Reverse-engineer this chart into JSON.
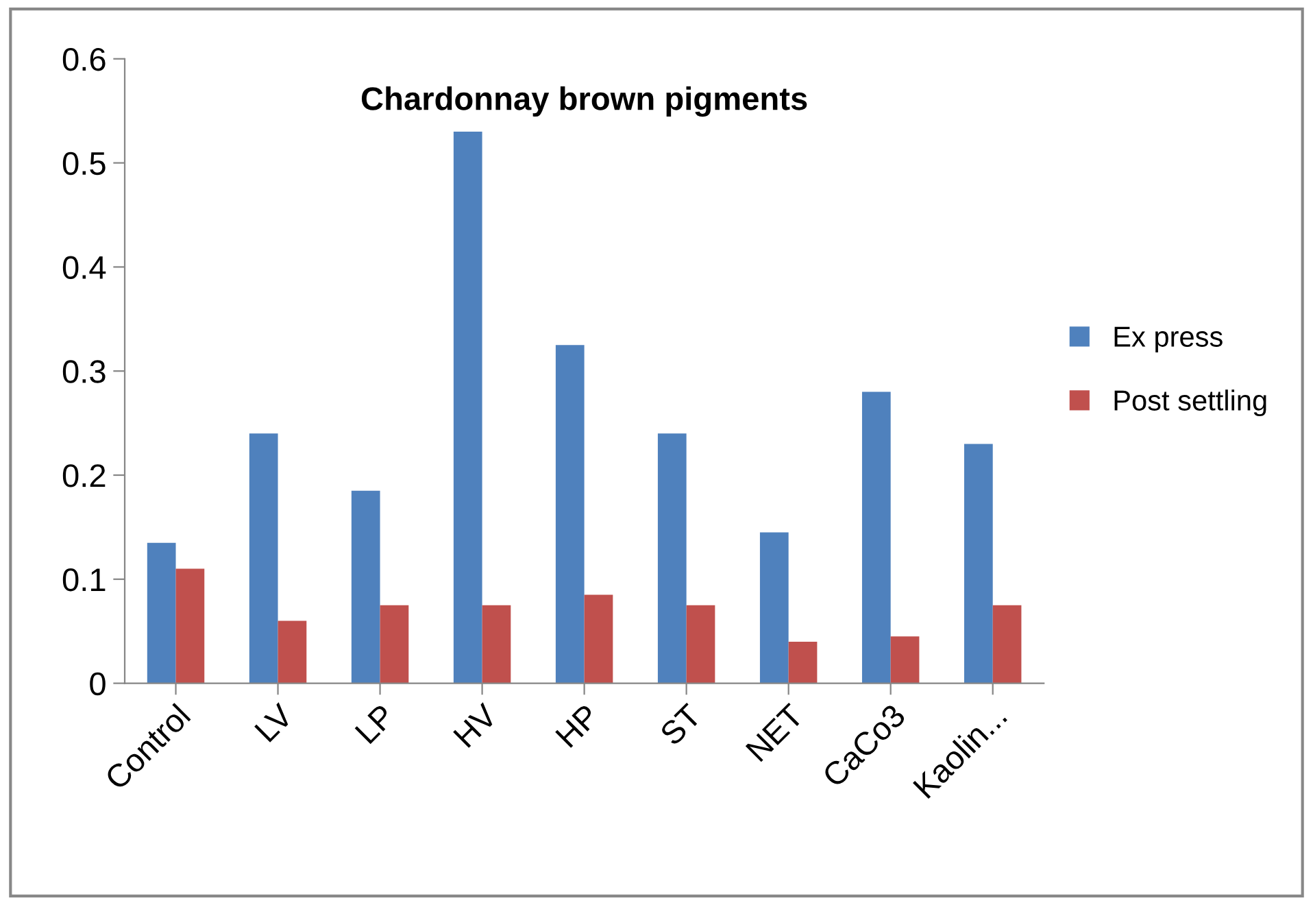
{
  "chart_data": {
    "type": "bar",
    "title": "Chardonnay brown pigments",
    "categories": [
      "Control",
      "LV",
      "LP",
      "HV",
      "HP",
      "ST",
      "NET",
      "CaCo3",
      "Kaolin..."
    ],
    "series": [
      {
        "name": "Ex press",
        "color": "#4f81bd",
        "values": [
          0.135,
          0.24,
          0.185,
          0.53,
          0.325,
          0.24,
          0.145,
          0.28,
          0.23
        ]
      },
      {
        "name": "Post settling",
        "color": "#c0504d",
        "values": [
          0.11,
          0.06,
          0.075,
          0.075,
          0.085,
          0.075,
          0.04,
          0.045,
          0.075
        ]
      }
    ],
    "ylim": [
      0,
      0.6
    ],
    "yticks": [
      0,
      0.1,
      0.2,
      0.3,
      0.4,
      0.5,
      0.6
    ],
    "grid": false,
    "legend": "right"
  }
}
